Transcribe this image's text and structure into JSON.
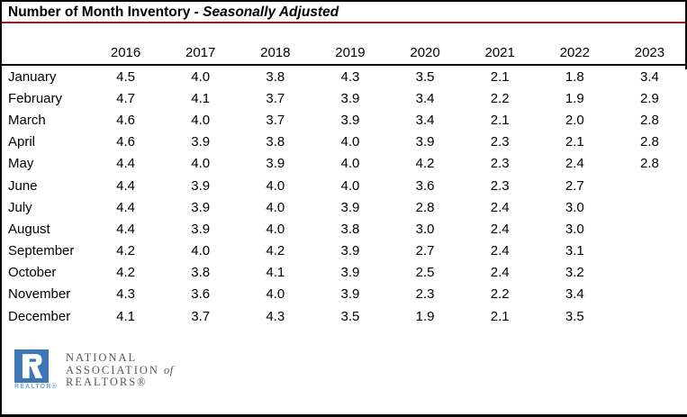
{
  "title": {
    "main": "Number of Month Inventory - ",
    "emphasis": "Seasonally Adjusted"
  },
  "chart_data": {
    "type": "table",
    "title": "Number of Month Inventory - Seasonally Adjusted",
    "columns": [
      "2016",
      "2017",
      "2018",
      "2019",
      "2020",
      "2021",
      "2022",
      "2023"
    ],
    "row_labels": [
      "January",
      "February",
      "March",
      "April",
      "May",
      "June",
      "July",
      "August",
      "September",
      "October",
      "November",
      "December"
    ],
    "values": [
      [
        4.5,
        4.0,
        3.8,
        4.3,
        3.5,
        2.1,
        1.8,
        3.4
      ],
      [
        4.7,
        4.1,
        3.7,
        3.9,
        3.4,
        2.2,
        1.9,
        2.9
      ],
      [
        4.6,
        4.0,
        3.7,
        3.9,
        3.4,
        2.1,
        2.0,
        2.8
      ],
      [
        4.6,
        3.9,
        3.8,
        4.0,
        3.9,
        2.3,
        2.1,
        2.8
      ],
      [
        4.4,
        4.0,
        3.9,
        4.0,
        4.2,
        2.3,
        2.4,
        2.8
      ],
      [
        4.4,
        3.9,
        4.0,
        4.0,
        3.6,
        2.3,
        2.7,
        null
      ],
      [
        4.4,
        3.9,
        4.0,
        3.9,
        2.8,
        2.4,
        3.0,
        null
      ],
      [
        4.4,
        3.9,
        4.0,
        3.8,
        3.0,
        2.4,
        3.0,
        null
      ],
      [
        4.2,
        4.0,
        4.2,
        3.9,
        2.7,
        2.4,
        3.1,
        null
      ],
      [
        4.2,
        3.8,
        4.1,
        3.9,
        2.5,
        2.4,
        3.2,
        null
      ],
      [
        4.3,
        3.6,
        4.0,
        3.9,
        2.3,
        2.2,
        3.4,
        null
      ],
      [
        4.1,
        3.7,
        4.3,
        3.5,
        1.9,
        2.1,
        3.5,
        null
      ]
    ],
    "value_format": "0.0"
  },
  "logo": {
    "r_letter": "R",
    "realtor_label": "REALTOR®",
    "line1": "NATIONAL",
    "line2": "ASSOCIATION",
    "line2_of": "of",
    "line3": "REALTORS®"
  },
  "colors": {
    "title_rule_red": "#9E1B1E",
    "header_rule_black": "#000000",
    "logo_blue": "#3D76B5",
    "logo_realtor_blue": "#74A7D4",
    "logo_text_gray": "#55575B"
  }
}
